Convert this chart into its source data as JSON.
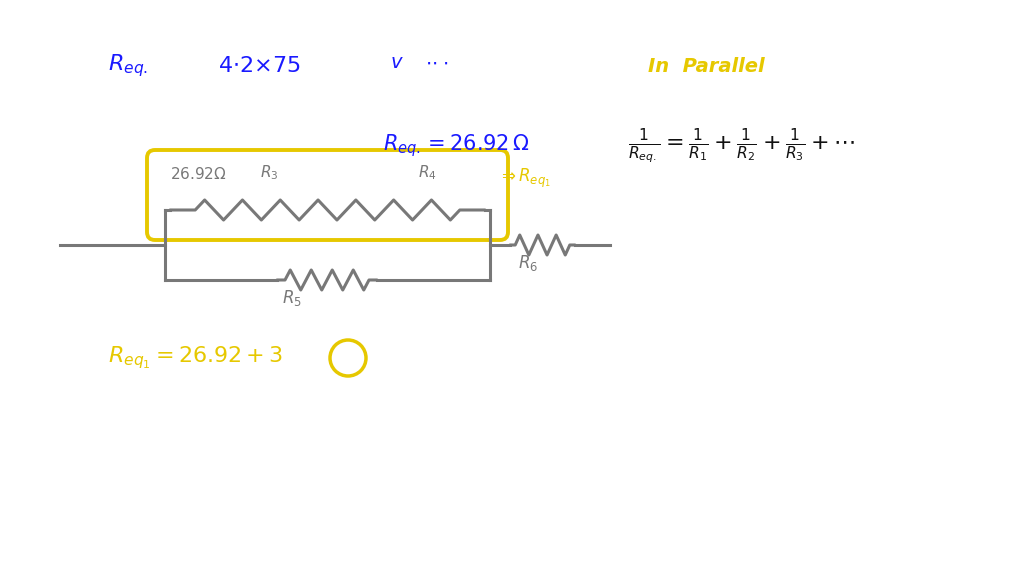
{
  "bg_color": "#ffffff",
  "blue": "#1a1aff",
  "yellow": "#e6c800",
  "gray": "#787878",
  "black": "#111111",
  "fig_w": 10.24,
  "fig_h": 5.76,
  "dpi": 100
}
